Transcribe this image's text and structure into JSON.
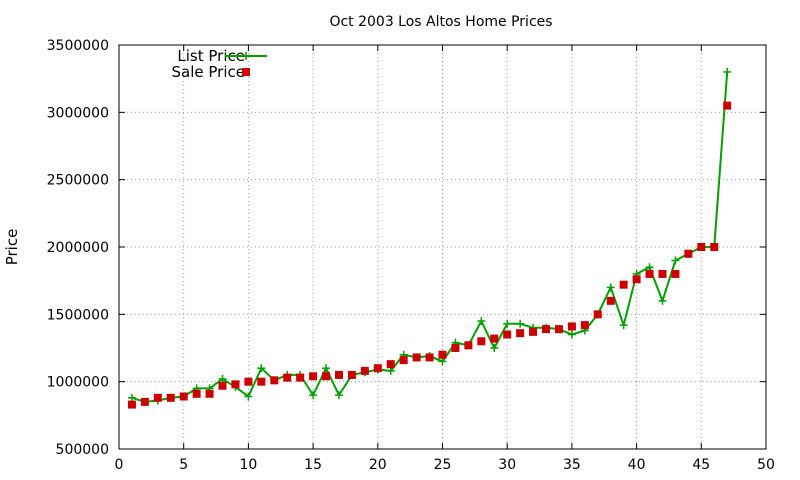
{
  "chart_data": {
    "type": "line",
    "title": "Oct 2003 Los Altos Home Prices",
    "xlabel": "",
    "ylabel": "Price",
    "xlim": [
      0,
      50
    ],
    "ylim": [
      500000,
      3500000
    ],
    "x_ticks": [
      0,
      5,
      10,
      15,
      20,
      25,
      30,
      35,
      40,
      45,
      50
    ],
    "y_ticks": [
      500000,
      1000000,
      1500000,
      2000000,
      2500000,
      3000000,
      3500000
    ],
    "grid": true,
    "legend_position": "top-left",
    "x": [
      1,
      2,
      3,
      4,
      5,
      6,
      7,
      8,
      9,
      10,
      11,
      12,
      13,
      14,
      15,
      16,
      17,
      18,
      19,
      20,
      21,
      22,
      23,
      24,
      25,
      26,
      27,
      28,
      29,
      30,
      31,
      32,
      33,
      34,
      35,
      36,
      37,
      38,
      39,
      40,
      41,
      42,
      43,
      44,
      45,
      46,
      47
    ],
    "series": [
      {
        "name": "List Price",
        "style": "line-cross",
        "color": "#00a000",
        "values": [
          880000,
          850000,
          860000,
          880000,
          890000,
          950000,
          950000,
          1020000,
          960000,
          890000,
          1100000,
          1010000,
          1050000,
          1050000,
          900000,
          1100000,
          900000,
          1050000,
          1070000,
          1090000,
          1080000,
          1200000,
          1180000,
          1190000,
          1150000,
          1290000,
          1270000,
          1450000,
          1250000,
          1430000,
          1430000,
          1400000,
          1400000,
          1390000,
          1350000,
          1380000,
          1500000,
          1700000,
          1420000,
          1800000,
          1850000,
          1600000,
          1900000,
          1950000,
          2000000,
          2000000,
          3300000
        ]
      },
      {
        "name": "Sale Price",
        "style": "square",
        "color": "#cc0000",
        "values": [
          830000,
          850000,
          880000,
          880000,
          890000,
          910000,
          910000,
          970000,
          980000,
          1000000,
          1000000,
          1010000,
          1030000,
          1030000,
          1040000,
          1040000,
          1050000,
          1050000,
          1080000,
          1100000,
          1130000,
          1160000,
          1180000,
          1180000,
          1200000,
          1250000,
          1270000,
          1300000,
          1320000,
          1350000,
          1360000,
          1370000,
          1390000,
          1390000,
          1410000,
          1420000,
          1500000,
          1600000,
          1720000,
          1760000,
          1800000,
          1800000,
          1800000,
          1950000,
          2000000,
          2000000,
          3050000
        ]
      }
    ]
  }
}
